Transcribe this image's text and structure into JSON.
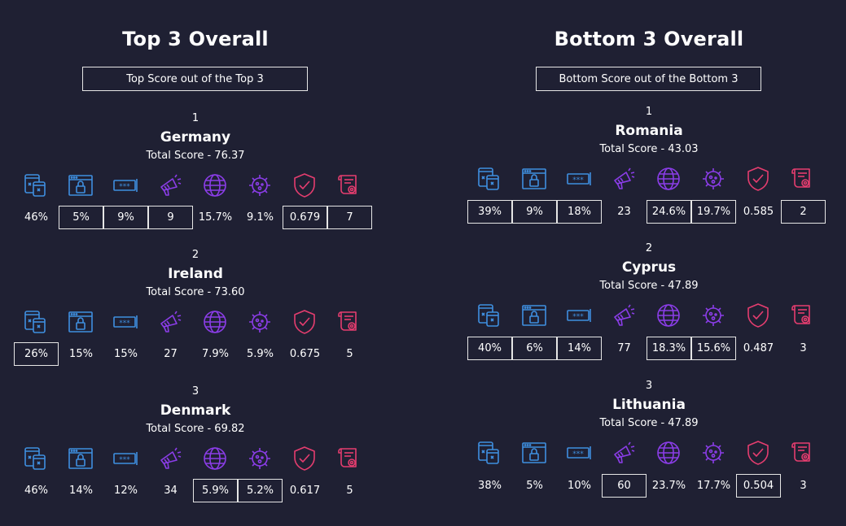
{
  "colors": {
    "background": "#1f2033",
    "blue": "#3f8fe0",
    "purple": "#8b3de8",
    "red": "#e53d6f"
  },
  "icons": [
    "devices-icon",
    "browser-lock-icon",
    "password-icon",
    "megaphone-icon",
    "globe-icon",
    "virus-icon",
    "shield-check-icon",
    "certificate-icon"
  ],
  "panels": [
    {
      "title": "Top 3 Overall",
      "legend_label": "Top Score out of the Top 3",
      "countries": [
        {
          "rank": "1",
          "name": "Germany",
          "total": "Total Score - 76.37",
          "values": [
            "46%",
            "5%",
            "9%",
            "9",
            "15.7%",
            "9.1%",
            "0.679",
            "7"
          ],
          "highlighted": [
            false,
            true,
            true,
            true,
            false,
            false,
            true,
            true
          ]
        },
        {
          "rank": "2",
          "name": "Ireland",
          "total": "Total Score - 73.60",
          "values": [
            "26%",
            "15%",
            "15%",
            "27",
            "7.9%",
            "5.9%",
            "0.675",
            "5"
          ],
          "highlighted": [
            true,
            false,
            false,
            false,
            false,
            false,
            false,
            false
          ]
        },
        {
          "rank": "3",
          "name": "Denmark",
          "total": "Total Score - 69.82",
          "values": [
            "46%",
            "14%",
            "12%",
            "34",
            "5.9%",
            "5.2%",
            "0.617",
            "5"
          ],
          "highlighted": [
            false,
            false,
            false,
            false,
            true,
            true,
            false,
            false
          ]
        }
      ]
    },
    {
      "title": "Bottom 3 Overall",
      "legend_label": "Bottom Score out of the Bottom 3",
      "countries": [
        {
          "rank": "1",
          "name": "Romania",
          "total": "Total Score - 43.03",
          "values": [
            "39%",
            "9%",
            "18%",
            "23",
            "24.6%",
            "19.7%",
            "0.585",
            "2"
          ],
          "highlighted": [
            true,
            true,
            true,
            false,
            true,
            true,
            false,
            true
          ]
        },
        {
          "rank": "2",
          "name": "Cyprus",
          "total": "Total Score - 47.89",
          "values": [
            "40%",
            "6%",
            "14%",
            "77",
            "18.3%",
            "15.6%",
            "0.487",
            "3"
          ],
          "highlighted": [
            true,
            true,
            true,
            false,
            true,
            true,
            false,
            false
          ]
        },
        {
          "rank": "3",
          "name": "Lithuania",
          "total": "Total Score - 47.89",
          "values": [
            "38%",
            "5%",
            "10%",
            "60",
            "23.7%",
            "17.7%",
            "0.504",
            "3"
          ],
          "highlighted": [
            false,
            false,
            false,
            true,
            false,
            false,
            true,
            false
          ]
        }
      ]
    }
  ]
}
